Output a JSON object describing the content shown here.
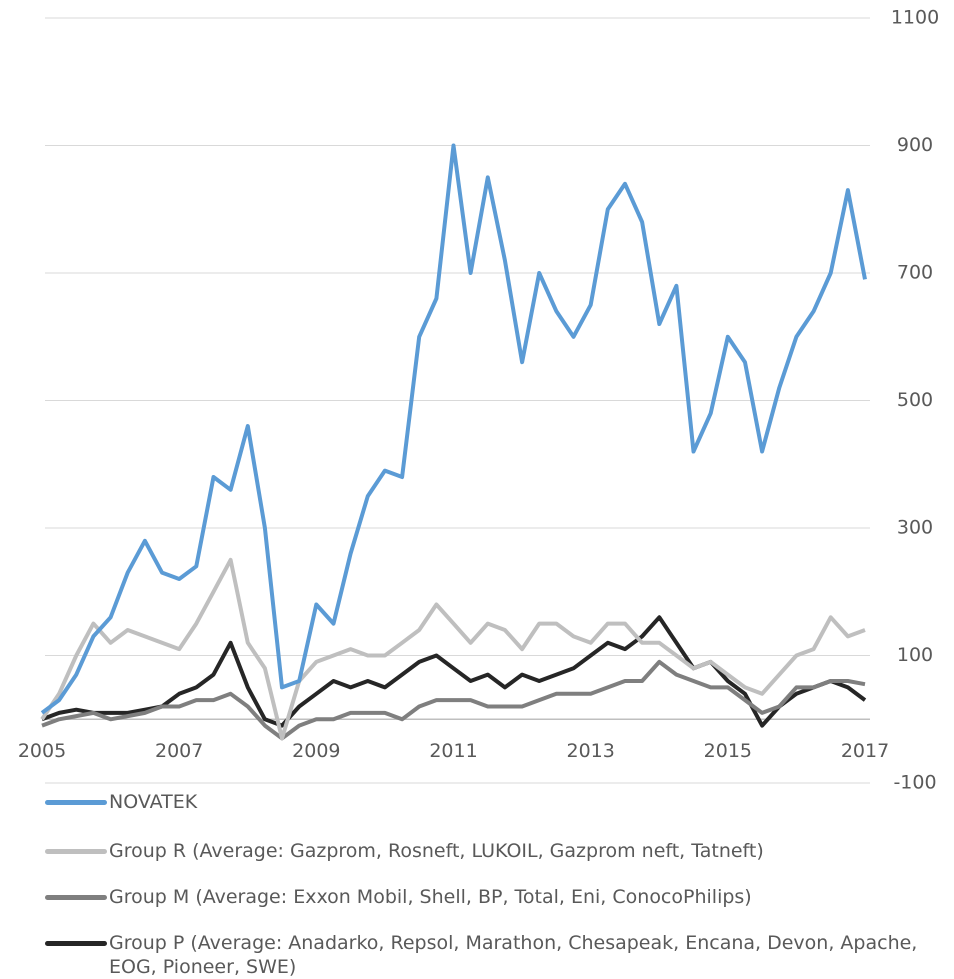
{
  "chart_data": {
    "type": "line",
    "x": [
      2005,
      2005.25,
      2005.5,
      2005.75,
      2006,
      2006.25,
      2006.5,
      2006.75,
      2007,
      2007.25,
      2007.5,
      2007.75,
      2008,
      2008.25,
      2008.5,
      2008.75,
      2009,
      2009.25,
      2009.5,
      2009.75,
      2010,
      2010.25,
      2010.5,
      2010.75,
      2011,
      2011.25,
      2011.5,
      2011.75,
      2012,
      2012.25,
      2012.5,
      2012.75,
      2013,
      2013.25,
      2013.5,
      2013.75,
      2014,
      2014.25,
      2014.5,
      2014.75,
      2015,
      2015.25,
      2015.5,
      2015.75,
      2016,
      2016.25,
      2016.5,
      2016.75,
      2017
    ],
    "series": [
      {
        "name": "NOVATEK",
        "color": "#5b9bd5",
        "values": [
          10,
          30,
          70,
          130,
          160,
          230,
          280,
          230,
          220,
          240,
          380,
          360,
          460,
          300,
          50,
          60,
          180,
          150,
          260,
          350,
          390,
          380,
          600,
          660,
          900,
          700,
          850,
          720,
          560,
          700,
          640,
          600,
          650,
          800,
          840,
          780,
          620,
          680,
          420,
          480,
          600,
          560,
          420,
          520,
          600,
          640,
          700,
          830,
          690
        ]
      },
      {
        "name": "Group R (Average: Gazprom, Rosneft, LUKOIL, Gazprom neft, Tatneft)",
        "color": "#bfbfbf",
        "values": [
          0,
          40,
          100,
          150,
          120,
          140,
          130,
          120,
          110,
          150,
          200,
          250,
          120,
          80,
          -30,
          60,
          90,
          100,
          110,
          100,
          100,
          120,
          140,
          180,
          150,
          120,
          150,
          140,
          110,
          150,
          150,
          130,
          120,
          150,
          150,
          120,
          120,
          100,
          80,
          90,
          70,
          50,
          40,
          70,
          100,
          110,
          160,
          130,
          140
        ]
      },
      {
        "name": "Group M (Average: Exxon Mobil, Shell, BP, Total, Eni, ConocoPhilips)",
        "color": "#7f7f7f",
        "values": [
          -10,
          0,
          5,
          10,
          0,
          5,
          10,
          20,
          20,
          30,
          30,
          40,
          20,
          -10,
          -30,
          -10,
          0,
          0,
          10,
          10,
          10,
          0,
          20,
          30,
          30,
          30,
          20,
          20,
          20,
          30,
          40,
          40,
          40,
          50,
          60,
          60,
          90,
          70,
          60,
          50,
          50,
          30,
          10,
          20,
          50,
          50,
          60,
          60,
          55
        ]
      },
      {
        "name": "Group P (Average: Anadarko, Repsol, Marathon, Chesapeak, Encana, Devon, Apache, EOG, Pioneer, SWE)",
        "color": "#262626",
        "values": [
          0,
          10,
          15,
          10,
          10,
          10,
          15,
          20,
          40,
          50,
          70,
          120,
          50,
          0,
          -10,
          20,
          40,
          60,
          50,
          60,
          50,
          70,
          90,
          100,
          80,
          60,
          70,
          50,
          70,
          60,
          70,
          80,
          100,
          120,
          110,
          130,
          160,
          120,
          80,
          90,
          60,
          40,
          -10,
          20,
          40,
          50,
          60,
          50,
          30
        ]
      }
    ],
    "xlim": [
      2005,
      2017
    ],
    "xticks": [
      2005,
      2007,
      2009,
      2011,
      2013,
      2015,
      2017
    ],
    "ylim": [
      -100,
      1100
    ],
    "yticks": [
      -100,
      100,
      300,
      500,
      700,
      900,
      1100
    ],
    "grid": true
  }
}
